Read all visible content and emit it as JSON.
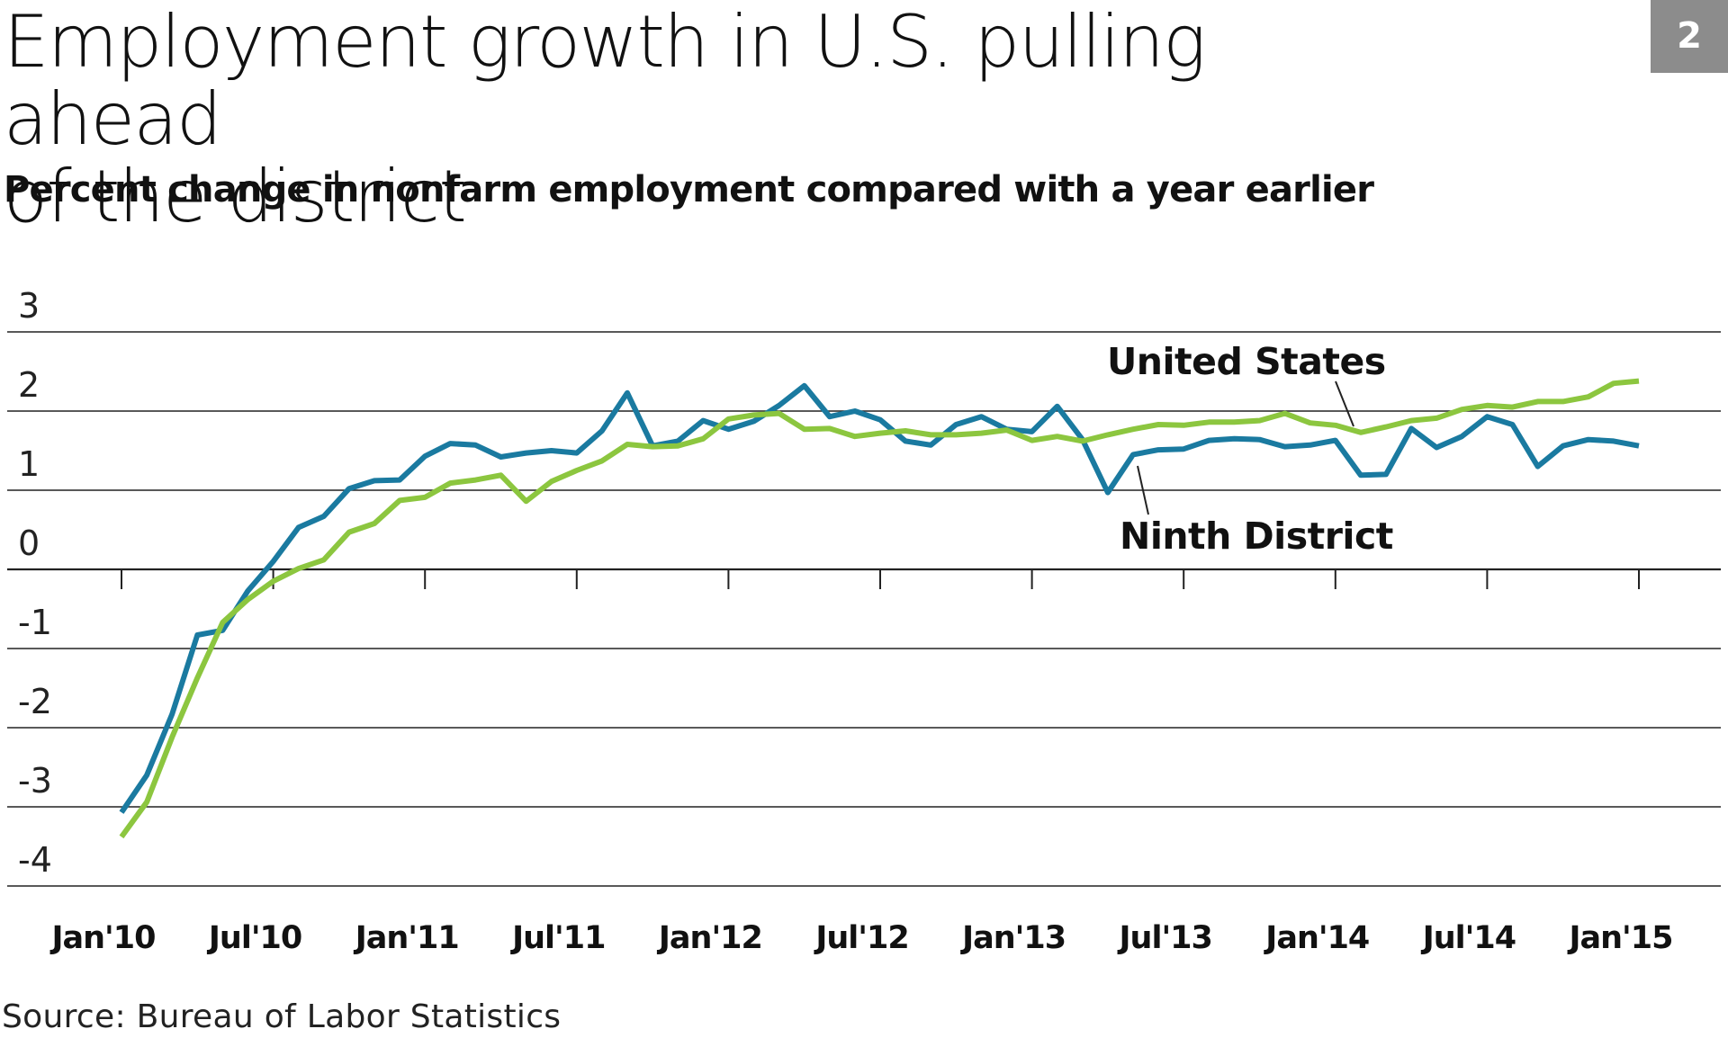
{
  "title_line1": "Employment growth in U.S. pulling ahead",
  "title_line2": "of the district",
  "subtitle": "Percent change in nonfarm employment compared with a year earlier",
  "figure_number": "2",
  "source": "Source: Bureau of Labor Statistics",
  "chart_data": {
    "type": "line",
    "title": "Employment growth in U.S. pulling ahead of the district",
    "subtitle": "Percent change in nonfarm employment compared with a year earlier",
    "xlabel": "",
    "ylabel": "",
    "ylim": [
      -4,
      3
    ],
    "yticks": [
      "3",
      "2",
      "1",
      "0",
      "-1",
      "-2",
      "-3",
      "-4"
    ],
    "ytick_values": [
      3,
      2,
      1,
      0,
      -1,
      -2,
      -3,
      -4
    ],
    "xticks": [
      "Jan'10",
      "Jul'10",
      "Jan'11",
      "Jul'11",
      "Jan'12",
      "Jul'12",
      "Jan'13",
      "Jul'13",
      "Jan'14",
      "Jul'14",
      "Jan'15"
    ],
    "xtick_month_index": [
      0,
      6,
      12,
      18,
      24,
      30,
      36,
      42,
      48,
      54,
      60
    ],
    "x_start": "Jan 2010",
    "grid": true,
    "colors": {
      "United States": "#8cc63f",
      "Ninth District": "#1a7aa0"
    },
    "series": [
      {
        "name": "Ninth District",
        "values": [
          -3.07,
          -2.6,
          -1.83,
          -0.83,
          -0.77,
          -0.27,
          0.1,
          0.53,
          0.67,
          1.02,
          1.12,
          1.13,
          1.43,
          1.59,
          1.57,
          1.42,
          1.47,
          1.5,
          1.47,
          1.75,
          2.23,
          1.56,
          1.62,
          1.88,
          1.77,
          1.87,
          2.07,
          2.32,
          1.93,
          2.0,
          1.89,
          1.62,
          1.57,
          1.83,
          1.93,
          1.77,
          1.74,
          2.06,
          1.64,
          0.97,
          1.45,
          1.51,
          1.52,
          1.63,
          1.65,
          1.64,
          1.55,
          1.57,
          1.63,
          1.19,
          1.2,
          1.78,
          1.54,
          1.68,
          1.93,
          1.83,
          1.3,
          1.56,
          1.64,
          1.62,
          1.56
        ]
      },
      {
        "name": "United States",
        "values": [
          -3.38,
          -2.94,
          -2.12,
          -1.37,
          -0.67,
          -0.38,
          -0.15,
          0.01,
          0.12,
          0.47,
          0.58,
          0.87,
          0.91,
          1.09,
          1.13,
          1.19,
          0.86,
          1.11,
          1.25,
          1.37,
          1.58,
          1.55,
          1.56,
          1.65,
          1.9,
          1.95,
          1.97,
          1.77,
          1.78,
          1.68,
          1.72,
          1.75,
          1.7,
          1.7,
          1.72,
          1.76,
          1.63,
          1.68,
          1.62,
          1.7,
          1.77,
          1.83,
          1.82,
          1.86,
          1.86,
          1.88,
          1.97,
          1.85,
          1.82,
          1.73,
          1.8,
          1.88,
          1.91,
          2.02,
          2.07,
          2.05,
          2.12,
          2.12,
          2.18,
          2.35,
          2.38
        ]
      }
    ],
    "annotations": [
      {
        "text": "United States",
        "series": "United States"
      },
      {
        "text": "Ninth District",
        "series": "Ninth District"
      }
    ]
  }
}
